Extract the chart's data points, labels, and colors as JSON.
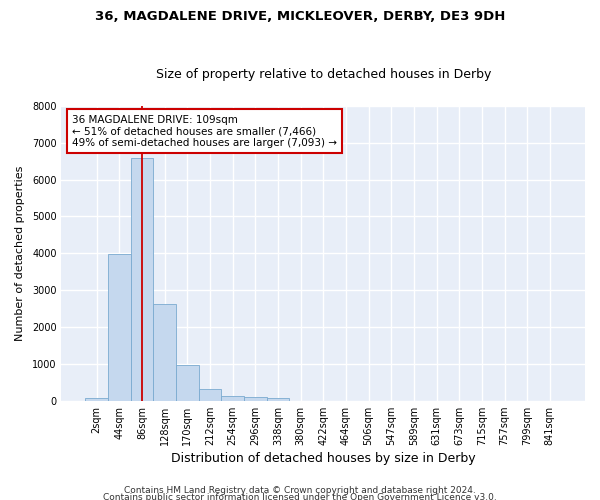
{
  "title_line1": "36, MAGDALENE DRIVE, MICKLEOVER, DERBY, DE3 9DH",
  "title_line2": "Size of property relative to detached houses in Derby",
  "xlabel": "Distribution of detached houses by size in Derby",
  "ylabel": "Number of detached properties",
  "bar_color": "#c5d8ee",
  "bar_edge_color": "#7aaad0",
  "background_color": "#e8eef8",
  "grid_color": "#ffffff",
  "categories": [
    "2sqm",
    "44sqm",
    "86sqm",
    "128sqm",
    "170sqm",
    "212sqm",
    "254sqm",
    "296sqm",
    "338sqm",
    "380sqm",
    "422sqm",
    "464sqm",
    "506sqm",
    "547sqm",
    "589sqm",
    "631sqm",
    "673sqm",
    "715sqm",
    "757sqm",
    "799sqm",
    "841sqm"
  ],
  "bar_heights": [
    70,
    3980,
    6570,
    2620,
    960,
    310,
    120,
    100,
    80,
    0,
    0,
    0,
    0,
    0,
    0,
    0,
    0,
    0,
    0,
    0,
    0
  ],
  "ylim": [
    0,
    8000
  ],
  "yticks": [
    0,
    1000,
    2000,
    3000,
    4000,
    5000,
    6000,
    7000,
    8000
  ],
  "vline_color": "#cc0000",
  "annotation_text": "36 MAGDALENE DRIVE: 109sqm\n← 51% of detached houses are smaller (7,466)\n49% of semi-detached houses are larger (7,093) →",
  "annotation_box_color": "#cc0000",
  "footer_line1": "Contains HM Land Registry data © Crown copyright and database right 2024.",
  "footer_line2": "Contains public sector information licensed under the Open Government Licence v3.0.",
  "title_fontsize": 9.5,
  "subtitle_fontsize": 9,
  "xlabel_fontsize": 9,
  "ylabel_fontsize": 8,
  "tick_fontsize": 7,
  "annotation_fontsize": 7.5,
  "footer_fontsize": 6.5
}
